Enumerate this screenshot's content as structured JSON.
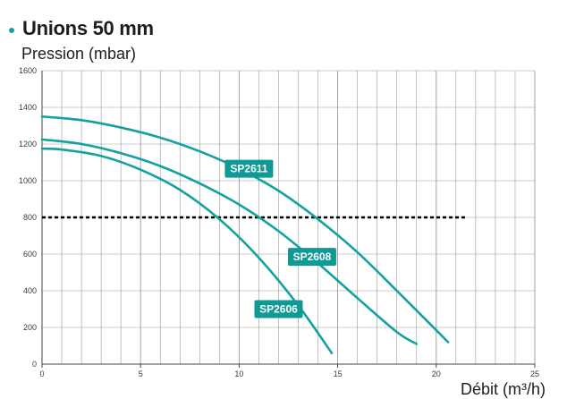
{
  "header": {
    "title": "Unions 50 mm"
  },
  "colors": {
    "accent": "#12a3a0",
    "label_bg": "#0f9a96",
    "text": "#1d1d1b",
    "grid": "#9a9a9a",
    "reference": "#000000"
  },
  "chart_data": {
    "type": "line",
    "ylabel": "Pression (mbar)",
    "xlabel": "Débit (m³/h)",
    "xlim": [
      0,
      25
    ],
    "ylim": [
      0,
      1600
    ],
    "x_ticks": [
      0,
      5,
      10,
      15,
      20,
      25
    ],
    "y_ticks": [
      0,
      200,
      400,
      600,
      800,
      1000,
      1200,
      1400,
      1600
    ],
    "grid": true,
    "reference_line": {
      "y": 800,
      "x_from": 0,
      "x_to": 21.5,
      "style": "dashed"
    },
    "series": [
      {
        "name": "SP2611",
        "x": [
          0,
          2,
          4,
          6,
          8,
          10,
          12,
          14,
          16,
          18,
          20,
          20.6
        ],
        "y": [
          1350,
          1330,
          1290,
          1235,
          1160,
          1065,
          945,
          790,
          610,
          400,
          185,
          120
        ]
      },
      {
        "name": "SP2608",
        "x": [
          0,
          2,
          4,
          6,
          8,
          10,
          12,
          14,
          16,
          18,
          19
        ],
        "y": [
          1225,
          1200,
          1150,
          1080,
          985,
          870,
          725,
          550,
          360,
          175,
          110
        ]
      },
      {
        "name": "SP2606",
        "x": [
          0,
          1,
          3,
          5,
          7,
          9,
          11,
          13,
          14.7
        ],
        "y": [
          1175,
          1170,
          1135,
          1060,
          950,
          790,
          580,
          320,
          60
        ]
      }
    ]
  }
}
